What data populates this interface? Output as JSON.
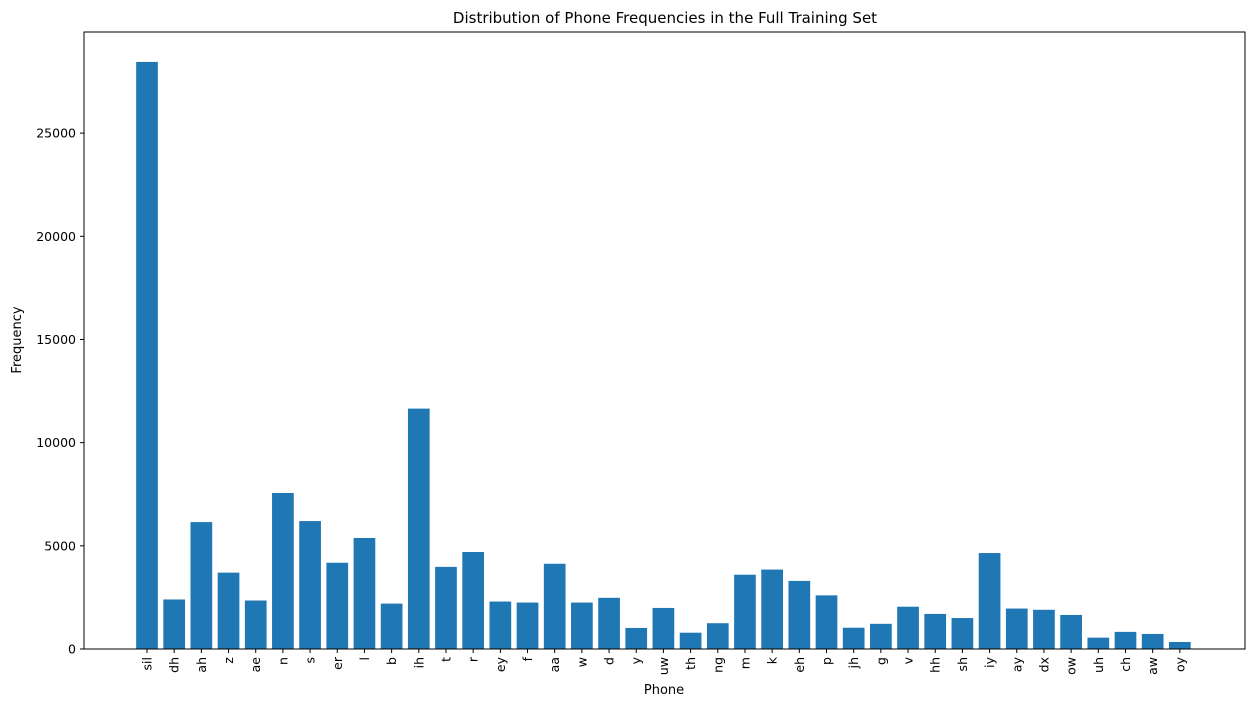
{
  "chart_data": {
    "type": "bar",
    "title": "Distribution of Phone Frequencies in the Full Training Set",
    "xlabel": "Phone",
    "ylabel": "Frequency",
    "ylim": [
      0,
      29900
    ],
    "yticks": [
      0,
      5000,
      10000,
      15000,
      20000,
      25000
    ],
    "grid": false,
    "bar_color": "#1f77b4",
    "categories": [
      "sil",
      "dh",
      "ah",
      "z",
      "ae",
      "n",
      "s",
      "er",
      "l",
      "b",
      "ih",
      "t",
      "r",
      "ey",
      "f",
      "aa",
      "w",
      "d",
      "y",
      "uw",
      "th",
      "ng",
      "m",
      "k",
      "eh",
      "p",
      "jh",
      "g",
      "v",
      "hh",
      "sh",
      "iy",
      "ay",
      "dx",
      "ow",
      "uh",
      "ch",
      "aw",
      "oy"
    ],
    "values": [
      28450,
      2400,
      6150,
      3700,
      2350,
      7560,
      6200,
      4180,
      5380,
      2200,
      11650,
      3980,
      4700,
      2300,
      2250,
      4130,
      2250,
      2480,
      1020,
      1990,
      790,
      1250,
      3600,
      3850,
      3300,
      2600,
      1030,
      1220,
      2050,
      1700,
      1500,
      4650,
      1960,
      1900,
      1650,
      550,
      830,
      730,
      340
    ]
  }
}
